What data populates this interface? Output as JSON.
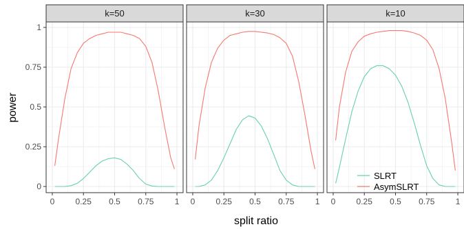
{
  "chart_data": {
    "type": "line",
    "xlabel": "split ratio",
    "ylabel": "power",
    "xlim": [
      0,
      1
    ],
    "ylim": [
      0,
      1
    ],
    "x_ticks": [
      0,
      0.25,
      0.5,
      0.75,
      1
    ],
    "x_tick_labels": [
      "0",
      "0.25",
      "0.5",
      "0.75",
      "1"
    ],
    "y_ticks": [
      0,
      0.25,
      0.5,
      0.75,
      1
    ],
    "y_tick_labels": [
      "0",
      "0.25",
      "0.5",
      "0.75",
      "1"
    ],
    "grid": true,
    "legend": {
      "position": "bottom-right of last panel",
      "entries": [
        {
          "name": "SLRT",
          "color": "#66d1a8"
        },
        {
          "name": "AsymSLRT",
          "color": "#f8766d"
        }
      ]
    },
    "x": [
      0.02,
      0.05,
      0.1,
      0.15,
      0.2,
      0.25,
      0.3,
      0.35,
      0.4,
      0.45,
      0.5,
      0.55,
      0.6,
      0.65,
      0.7,
      0.75,
      0.8,
      0.85,
      0.9,
      0.95,
      0.98
    ],
    "panels": [
      {
        "title": "k=50",
        "series": [
          {
            "name": "SLRT",
            "values": [
              0.0,
              0.0,
              0.0,
              0.005,
              0.02,
              0.05,
              0.09,
              0.13,
              0.16,
              0.175,
              0.18,
              0.17,
              0.14,
              0.1,
              0.05,
              0.015,
              0.003,
              0.0,
              0.0,
              0.0,
              0.0
            ]
          },
          {
            "name": "AsymSLRT",
            "values": [
              0.13,
              0.3,
              0.55,
              0.74,
              0.84,
              0.9,
              0.93,
              0.95,
              0.96,
              0.97,
              0.97,
              0.97,
              0.96,
              0.95,
              0.93,
              0.88,
              0.78,
              0.6,
              0.38,
              0.18,
              0.11
            ]
          }
        ]
      },
      {
        "title": "k=30",
        "series": [
          {
            "name": "SLRT",
            "values": [
              0.0,
              0.0,
              0.01,
              0.04,
              0.1,
              0.18,
              0.27,
              0.36,
              0.42,
              0.445,
              0.43,
              0.38,
              0.3,
              0.2,
              0.1,
              0.04,
              0.01,
              0.0,
              0.0,
              0.0,
              0.0
            ]
          },
          {
            "name": "AsymSLRT",
            "values": [
              0.17,
              0.38,
              0.62,
              0.78,
              0.87,
              0.92,
              0.95,
              0.96,
              0.97,
              0.975,
              0.975,
              0.97,
              0.965,
              0.955,
              0.935,
              0.9,
              0.82,
              0.66,
              0.45,
              0.22,
              0.11
            ]
          }
        ]
      },
      {
        "title": "k=10",
        "series": [
          {
            "name": "SLRT",
            "values": [
              0.02,
              0.12,
              0.3,
              0.47,
              0.6,
              0.69,
              0.74,
              0.76,
              0.76,
              0.74,
              0.7,
              0.63,
              0.53,
              0.4,
              0.26,
              0.13,
              0.05,
              0.01,
              0.0,
              0.0,
              0.0
            ]
          },
          {
            "name": "AsymSLRT",
            "values": [
              0.29,
              0.5,
              0.72,
              0.85,
              0.91,
              0.945,
              0.96,
              0.97,
              0.975,
              0.98,
              0.98,
              0.98,
              0.975,
              0.965,
              0.95,
              0.92,
              0.86,
              0.74,
              0.55,
              0.28,
              0.1
            ]
          }
        ]
      }
    ]
  }
}
